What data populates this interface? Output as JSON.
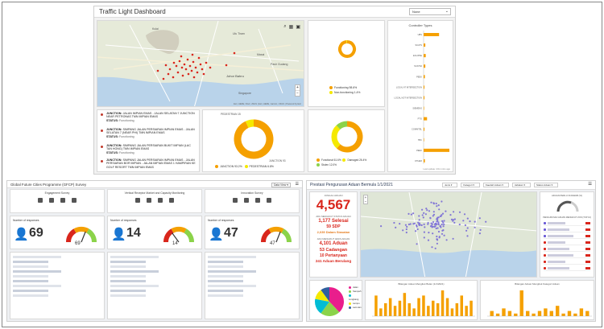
{
  "traffic": {
    "title": "Traffic Light Dashboard",
    "select_value": "None",
    "map_attribution": "Esri, HERE, NGA, USGS | Esri, HERE, Garmin, USGS | Powered by Esri",
    "map_labels": [
      "Kulai",
      "Johor Bahru",
      "Ulu Tiram",
      "Pasir Gudang",
      "Singapore",
      "Masai"
    ],
    "junctions": [
      {
        "label": "JUNCTION:",
        "name": "JALAN IMPIAN EMAS - JALAN SELATAN 7 JUNCTION NEAR PETRONAS TMN IMPIAN EMAS",
        "status_label": "STATUS:",
        "status": "Functioning"
      },
      {
        "label": "JUNCTION:",
        "name": "SIMPANG JALAN PERSIARAN IMPIAN EMAS - JALAN SELATAN 7 (NEAR PHI) TMN IMPIAN EMAS",
        "status_label": "STATUS:",
        "status": "Functioning"
      },
      {
        "label": "JUNCTION:",
        "name": "SIMPANG JALAN PERSIARAN BUKIT IMPIAN (LAC TAN HONG) TMN IMPIAN EMAS",
        "status_label": "STATUS:",
        "status": "Functioning"
      },
      {
        "label": "JUNCTION:",
        "name": "SIMPANG JALAN PERSIARAN IMPIAN EMAS - JALAN PERSIARAN BOR IMPIAN - JALAN IMPIAN EMAS 1 HAMPIRAN KE GOLF RESORT TMN IMPIAN EMAS",
        "status_label": "STATUS:",
        "status": "Functioning"
      }
    ],
    "status_legend": [
      "Functioning",
      "Non-functioning"
    ],
    "status_pct": [
      "98.6%",
      "1.4%"
    ],
    "type_legend": [
      "JUNCTION",
      "PEDESTRIAN"
    ],
    "type_pct": [
      "93.2%",
      "6.8%"
    ],
    "type_labels": [
      "PEDESTRIAN 15",
      "JUNCTION 93"
    ],
    "cond_legend": [
      "Functional",
      "Damaged",
      "Stolen"
    ],
    "cond_pct": [
      "61.6%",
      "26.4%",
      "12.0%"
    ],
    "updated": "Last update: 2/11 mins ago",
    "controller_title": "Controller Types",
    "controller_types": [
      "UBS",
      "SCATS",
      "ECLIPSE",
      "SCATS2",
      "PEEK",
      "LOCAL AT INTERSECTION",
      "LOCAL NOT INTERSECTION",
      "SIEMENS",
      "PTG",
      "COMMTEL",
      "TBC",
      "PEEK",
      "OTHER"
    ],
    "controller_counts": [
      36,
      4,
      5,
      4,
      3,
      2,
      2,
      1,
      8,
      2,
      1,
      60,
      3
    ],
    "colors": {
      "orange": "#f5a000",
      "yellow": "#f5e900",
      "green": "#8bd34a",
      "red": "#d9261c",
      "blue": "#2f5f9e"
    }
  },
  "survey": {
    "title": "Global Future Cities Programme (GFCP) Survey",
    "button": "Data View ▾",
    "columns": [
      {
        "header": "Engagement Survey",
        "responses_label": "Number of responses",
        "count": "69",
        "gauge_value": "69"
      },
      {
        "header": "Vertical Receptor Market and Capacity Monitoring",
        "responses_label": "Number of responses",
        "count": "14",
        "gauge_value": "14"
      },
      {
        "header": "Innovation Survey",
        "responses_label": "Number of responses",
        "count": "47",
        "gauge_value": "47"
      }
    ]
  },
  "complaints": {
    "title": "Prestasi Pengurusan Aduan Bermula 1/1/2021",
    "filters": [
      "Jenis",
      "Kategori",
      "Kaedah Aduan",
      "Jabatan",
      "Status Aduan"
    ],
    "total_label": "JUMLAH ADUAN",
    "total": "4,567",
    "closed_label": "ADU MENGIKUT STATUS ADUAN",
    "resolved": "1,177 Selesai",
    "sdp": "59 SDP",
    "in_review": "2,039 Dalam Siasatan",
    "in_progress_label": "ADU MENGIKUT JENIS ADUAN",
    "received": "4,101 Aduan",
    "suggestions": "53 Cadangan",
    "questions": "10 Pertanyaan",
    "pending": "241 Aduan Berulang",
    "gauge_label": "ADUAN PERLU DIJAWAB (%)",
    "list_title": "PENGURUSAN ADUAN MENGIKUT ZON (TOP 10)",
    "chart1_title": "Bilangan Aduan Mengikut Bulan (1/1/2021)",
    "chart2_title": "Bilangan Aduan Mengikut Kategori Aduan",
    "pie_legend": [
      "Jalan",
      "Sampah",
      "Longkang",
      "Lampu",
      "Lain-lain"
    ],
    "chart1_values": [
      8,
      3,
      5,
      7,
      4,
      6,
      9,
      5,
      3,
      7,
      8,
      4,
      6,
      5,
      10,
      7,
      3,
      5,
      8,
      4,
      6
    ],
    "chart2_values": [
      2,
      1,
      3,
      2,
      1,
      10,
      2,
      1,
      2,
      3,
      2,
      4,
      1,
      2,
      1,
      3,
      2
    ]
  }
}
